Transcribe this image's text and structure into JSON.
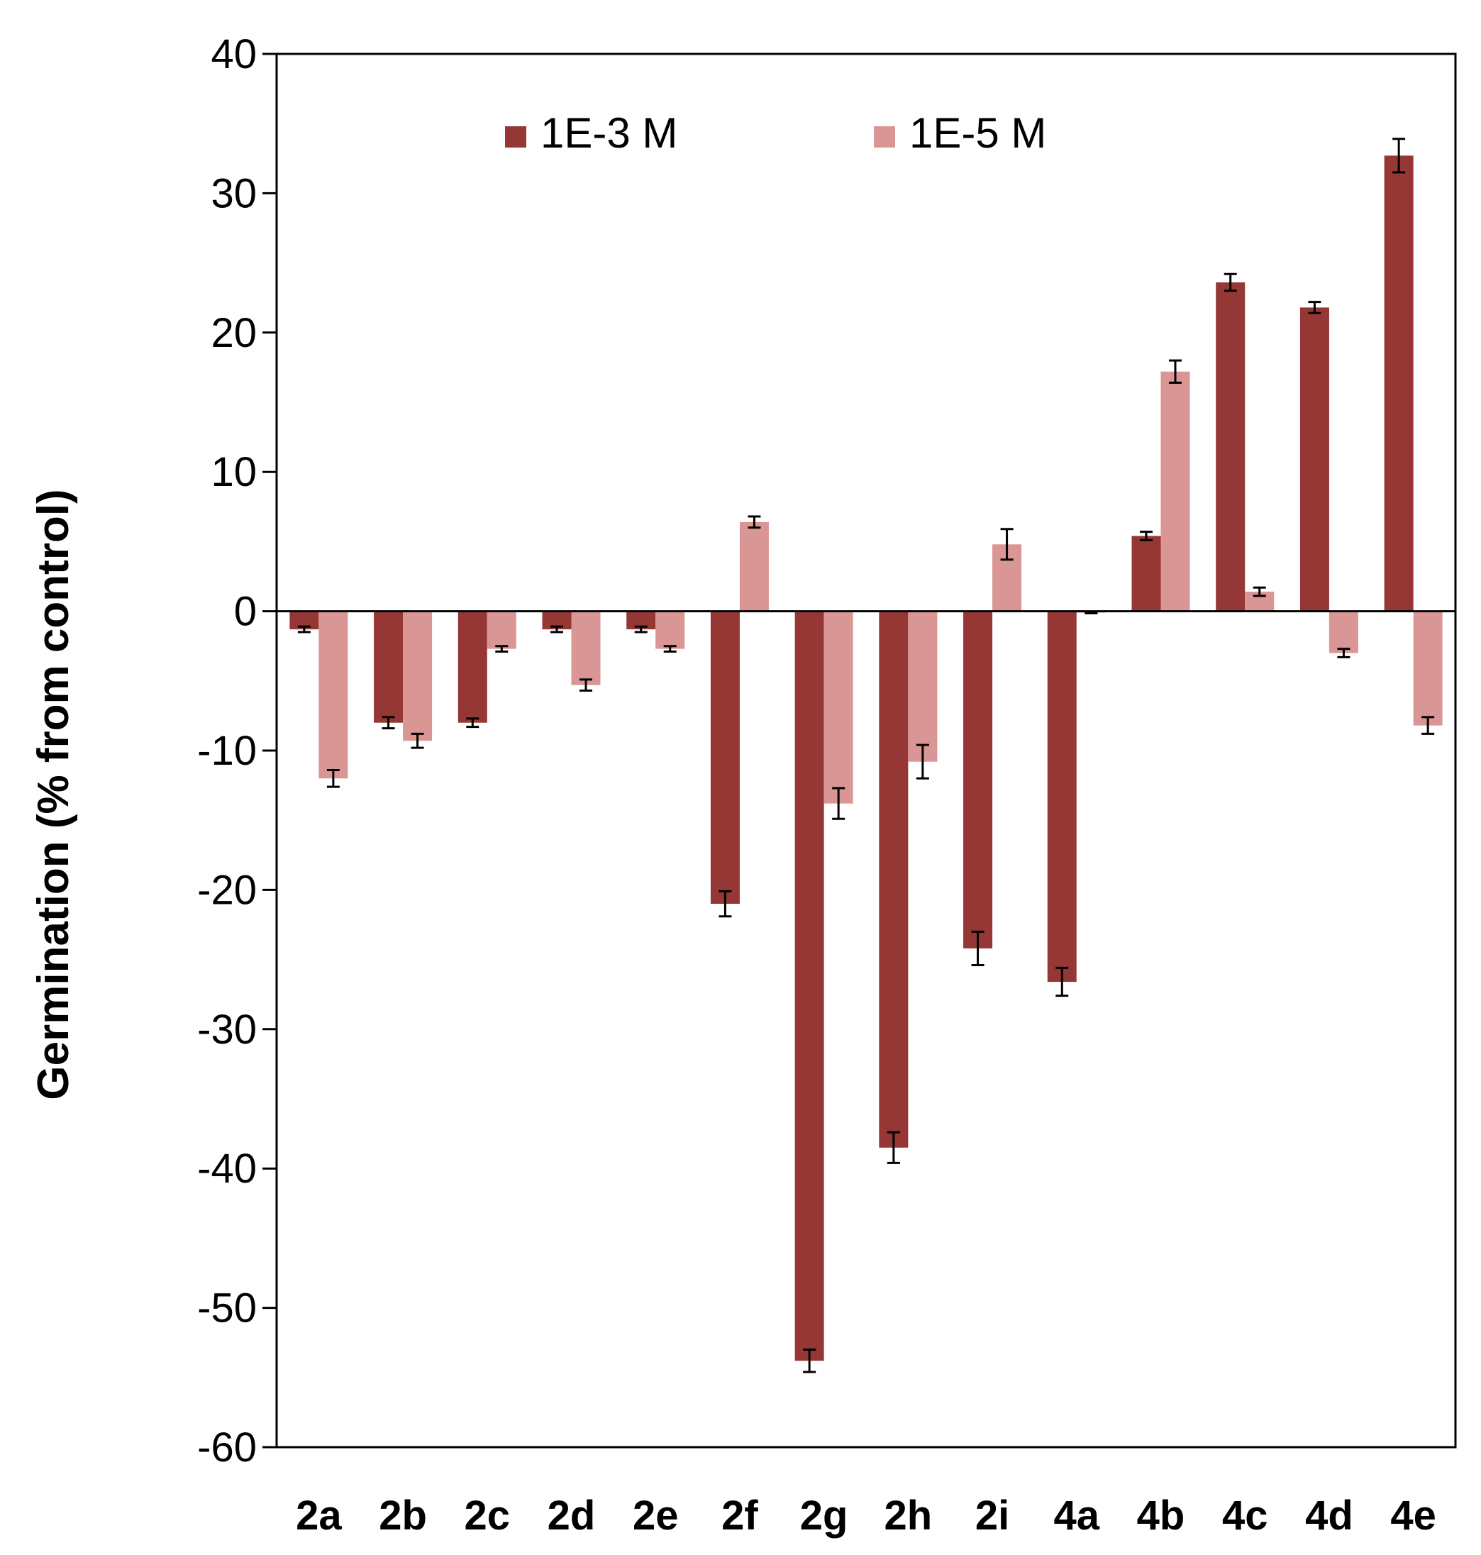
{
  "chart_data": {
    "type": "bar",
    "title": "",
    "xlabel": "",
    "ylabel": "Germination (% from control)",
    "ylim": [
      -60,
      40
    ],
    "yticks": [
      40,
      30,
      20,
      10,
      0,
      -10,
      -20,
      -30,
      -40,
      -50,
      -60
    ],
    "ytick_labels": [
      "40",
      "30",
      "20",
      "10",
      "0",
      "-10",
      "-20",
      "-30",
      "-40",
      "-50",
      "-60"
    ],
    "grid": false,
    "legend_position": "top",
    "categories": [
      "2a",
      "2b",
      "2c",
      "2d",
      "2e",
      "2f",
      "2g",
      "2h",
      "2i",
      "4a",
      "4b",
      "4c",
      "4d",
      "4e"
    ],
    "series": [
      {
        "name": "1E-3 M",
        "color": "#953735",
        "values": [
          -1.3,
          -8.0,
          -8.0,
          -1.3,
          -1.3,
          -21.0,
          -53.8,
          -38.5,
          -24.2,
          -26.6,
          5.4,
          23.6,
          21.8,
          32.7
        ],
        "errors": [
          0.2,
          0.4,
          0.3,
          0.2,
          0.2,
          0.9,
          0.8,
          1.1,
          1.2,
          1.0,
          0.3,
          0.6,
          0.4,
          1.2
        ]
      },
      {
        "name": "1E-5 M",
        "color": "#d99694",
        "values": [
          -12.0,
          -9.3,
          -2.7,
          -5.3,
          -2.7,
          6.4,
          -13.8,
          -10.8,
          4.8,
          -0.1,
          17.2,
          1.4,
          -3.0,
          -8.2
        ],
        "errors": [
          0.6,
          0.5,
          0.2,
          0.4,
          0.2,
          0.4,
          1.1,
          1.2,
          1.1,
          0.05,
          0.8,
          0.3,
          0.3,
          0.6
        ]
      }
    ]
  }
}
